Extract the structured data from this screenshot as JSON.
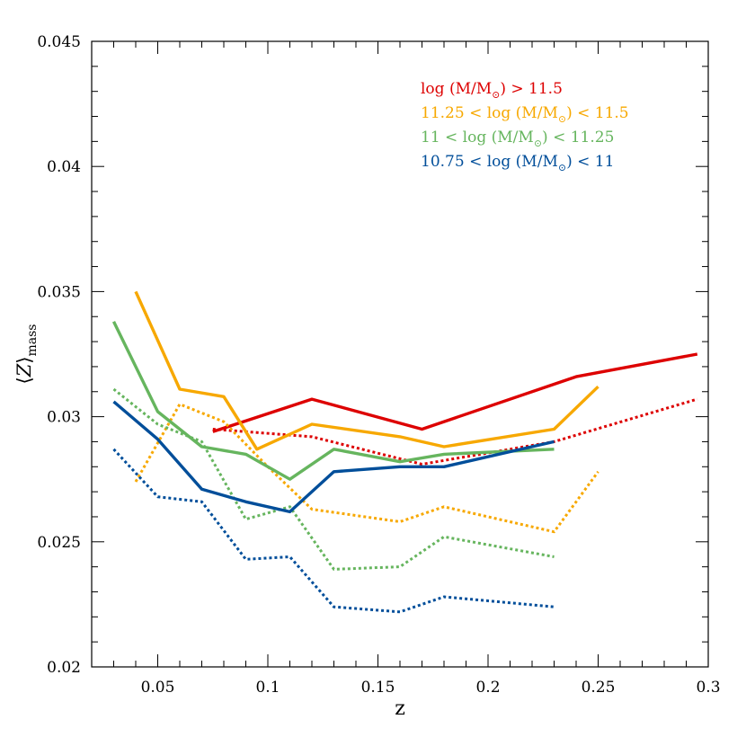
{
  "chart_data": {
    "type": "line",
    "xlabel": "z",
    "ylabel": {
      "main": "Z",
      "sub": "mass",
      "open_bracket": "⟨",
      "close_bracket": "⟩"
    },
    "xlim": [
      0.02,
      0.3
    ],
    "ylim": [
      0.02,
      0.045
    ],
    "x_ticks": [
      0.05,
      0.1,
      0.15,
      0.2,
      0.25,
      0.3
    ],
    "x_tick_labels": [
      "0.05",
      "0.1",
      "0.15",
      "0.2",
      "0.25",
      "0.3"
    ],
    "y_ticks": [
      0.02,
      0.025,
      0.03,
      0.035,
      0.04,
      0.045
    ],
    "y_tick_labels": [
      "0.02",
      "0.025",
      "0.03",
      "0.035",
      "0.04",
      "0.045"
    ],
    "grid": false,
    "legend_position": "top-right",
    "legend": [
      {
        "prefix": "log (M/M",
        "sun": "⊙",
        "suffix": ") > 11.5",
        "color": "#dd0000"
      },
      {
        "prefix": "11.25 < log (M/M",
        "sun": "⊙",
        "suffix": ") < 11.5",
        "color": "#f7a800"
      },
      {
        "prefix": "11 < log (M/M",
        "sun": "⊙",
        "suffix": ") < 11.25",
        "color": "#66b55e"
      },
      {
        "prefix": "10.75 < log (M/M",
        "sun": "⊙",
        "suffix": ") < 11",
        "color": "#004e9a"
      }
    ],
    "series": [
      {
        "color": "#dd0000",
        "style": "solid",
        "x": [
          0.075,
          0.12,
          0.17,
          0.24,
          0.295
        ],
        "y": [
          0.0294,
          0.0307,
          0.0295,
          0.0316,
          0.0325
        ]
      },
      {
        "color": "#dd0000",
        "style": "dotted",
        "x": [
          0.075,
          0.12,
          0.17,
          0.23,
          0.295
        ],
        "y": [
          0.0295,
          0.0292,
          0.0281,
          0.029,
          0.0307
        ]
      },
      {
        "color": "#f7a800",
        "style": "solid",
        "x": [
          0.04,
          0.06,
          0.08,
          0.095,
          0.12,
          0.16,
          0.18,
          0.23,
          0.25
        ],
        "y": [
          0.035,
          0.0311,
          0.0308,
          0.0287,
          0.0297,
          0.0292,
          0.0288,
          0.0295,
          0.0312
        ]
      },
      {
        "color": "#f7a800",
        "style": "dotted",
        "x": [
          0.04,
          0.06,
          0.08,
          0.1,
          0.12,
          0.16,
          0.18,
          0.23,
          0.25
        ],
        "y": [
          0.0274,
          0.0305,
          0.0298,
          0.028,
          0.0263,
          0.0258,
          0.0264,
          0.0254,
          0.0278
        ]
      },
      {
        "color": "#66b55e",
        "style": "solid",
        "x": [
          0.03,
          0.05,
          0.07,
          0.09,
          0.11,
          0.13,
          0.16,
          0.18,
          0.23
        ],
        "y": [
          0.0338,
          0.0302,
          0.0288,
          0.0285,
          0.0275,
          0.0287,
          0.0282,
          0.0285,
          0.0287
        ]
      },
      {
        "color": "#66b55e",
        "style": "dotted",
        "x": [
          0.03,
          0.05,
          0.07,
          0.09,
          0.11,
          0.13,
          0.16,
          0.18,
          0.23
        ],
        "y": [
          0.0311,
          0.0297,
          0.029,
          0.0259,
          0.0264,
          0.0239,
          0.024,
          0.0252,
          0.0244
        ]
      },
      {
        "color": "#004e9a",
        "style": "solid",
        "x": [
          0.03,
          0.05,
          0.07,
          0.09,
          0.11,
          0.13,
          0.16,
          0.18,
          0.23
        ],
        "y": [
          0.0306,
          0.0291,
          0.0271,
          0.0266,
          0.0262,
          0.0278,
          0.028,
          0.028,
          0.029
        ]
      },
      {
        "color": "#004e9a",
        "style": "dotted",
        "x": [
          0.03,
          0.05,
          0.07,
          0.09,
          0.11,
          0.13,
          0.16,
          0.18,
          0.23
        ],
        "y": [
          0.0287,
          0.0268,
          0.0266,
          0.0243,
          0.0244,
          0.0224,
          0.0222,
          0.0228,
          0.0224
        ]
      }
    ]
  }
}
